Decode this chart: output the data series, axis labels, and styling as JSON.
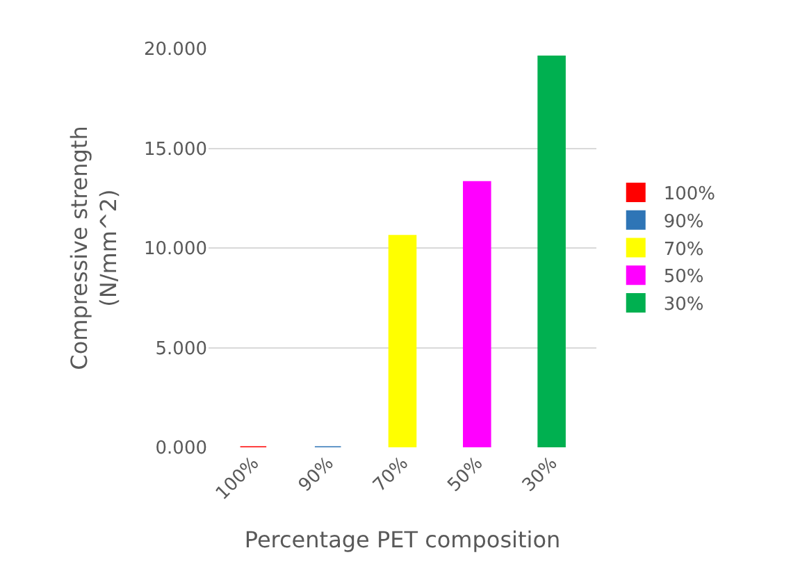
{
  "chart_data": {
    "type": "bar",
    "xlabel": "Percentage PET composition",
    "ylabel": "Compressive strength (N/mm^2)",
    "categories": [
      "100%",
      "90%",
      "70%",
      "50%",
      "30%"
    ],
    "series": [
      {
        "name": "100%",
        "color": "#ff0000",
        "values": [
          0,
          null,
          null,
          null,
          null
        ]
      },
      {
        "name": "90%",
        "color": "#2e75b6",
        "values": [
          null,
          0,
          null,
          null,
          null
        ]
      },
      {
        "name": "70%",
        "color": "#ffff00",
        "values": [
          null,
          null,
          10.6,
          null,
          null
        ]
      },
      {
        "name": "50%",
        "color": "#ff00ff",
        "values": [
          null,
          null,
          null,
          13.3,
          null
        ]
      },
      {
        "name": "30%",
        "color": "#00b050",
        "values": [
          null,
          null,
          null,
          null,
          19.6
        ]
      }
    ],
    "ylim": [
      0,
      20
    ],
    "yticks": [
      {
        "value": 0,
        "label": "0.000"
      },
      {
        "value": 5,
        "label": "5.000"
      },
      {
        "value": 10,
        "label": "10.000"
      },
      {
        "value": 15,
        "label": "15.000"
      },
      {
        "value": 20,
        "label": "20.000"
      }
    ],
    "grid": "y",
    "legend": "right"
  }
}
